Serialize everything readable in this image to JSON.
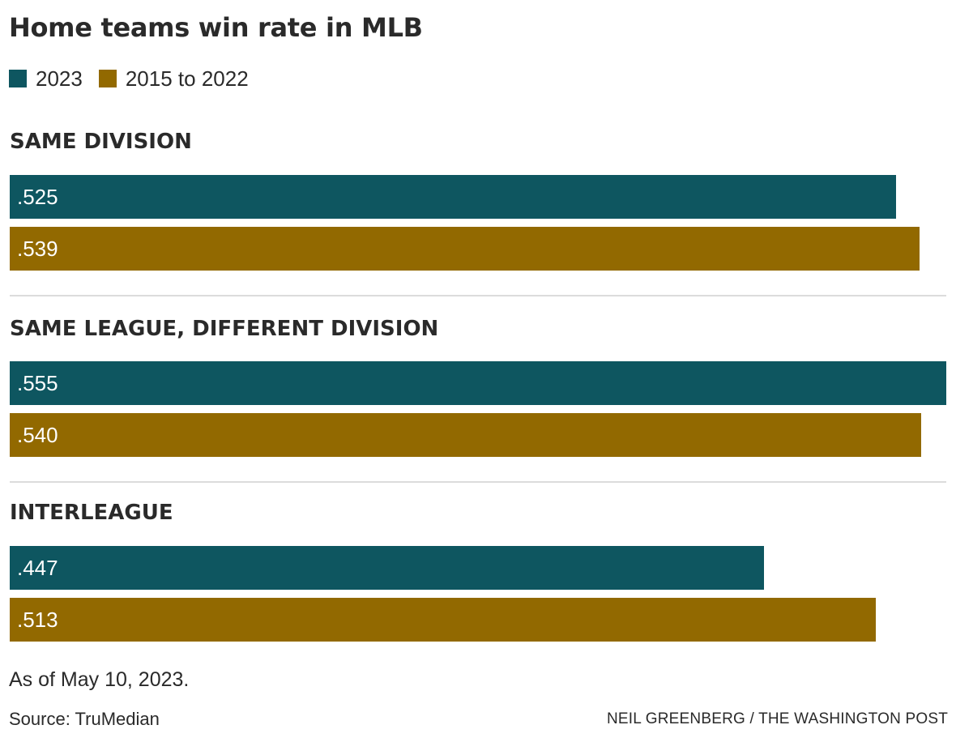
{
  "chart_data": {
    "type": "bar",
    "orientation": "horizontal",
    "title": "Home teams win rate in MLB",
    "categories": [
      "SAME DIVISION",
      "SAME LEAGUE, DIFFERENT DIVISION",
      "INTERLEAGUE"
    ],
    "series": [
      {
        "name": "2023",
        "color": "#0e5660",
        "values": [
          0.525,
          0.555,
          0.447
        ],
        "labels": [
          ".525",
          ".555",
          ".447"
        ]
      },
      {
        "name": "2015 to 2022",
        "color": "#926900",
        "values": [
          0.539,
          0.54,
          0.513
        ],
        "labels": [
          ".539",
          ".540",
          ".513"
        ]
      }
    ],
    "xlim": [
      0,
      0.555
    ],
    "grid": false,
    "legend_position": "top-left",
    "note": "As of May 10, 2023.",
    "source": "Source: TruMedian",
    "credit": "NEIL GREENBERG / THE WASHINGTON POST"
  }
}
